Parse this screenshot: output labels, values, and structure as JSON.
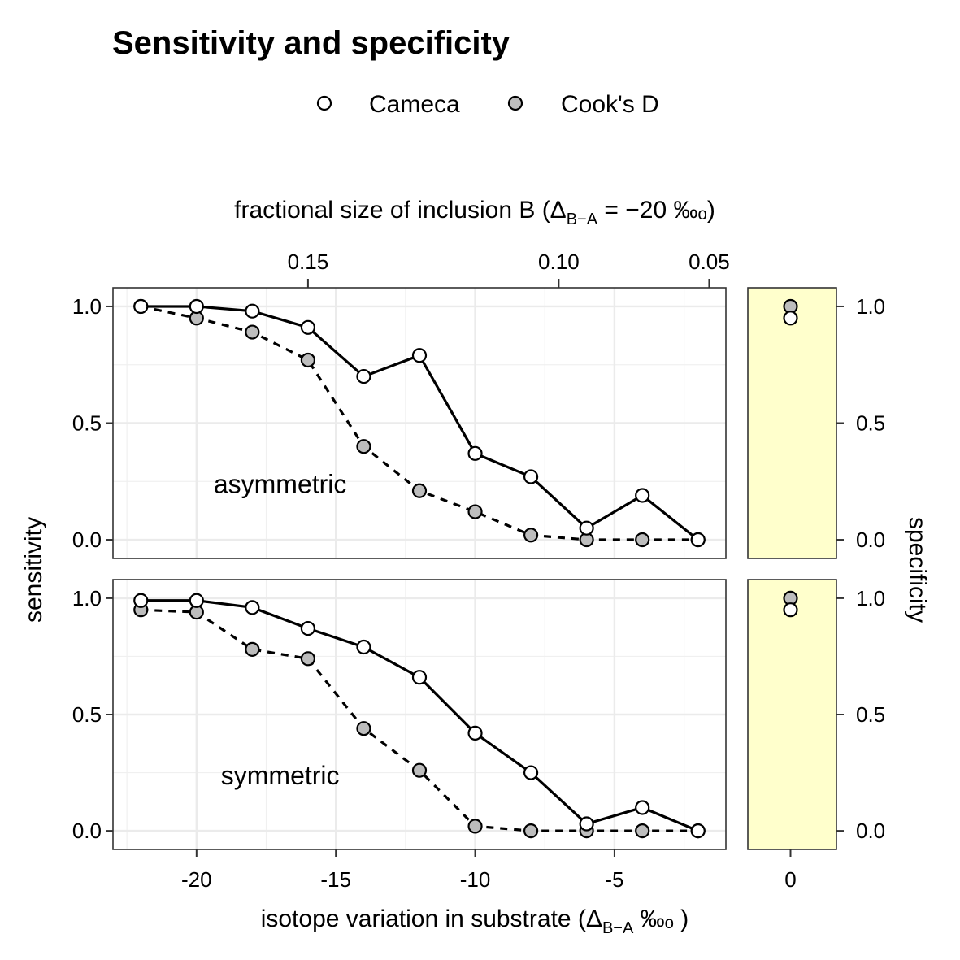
{
  "chart_data": {
    "type": "scatter",
    "title": "Sensitivity and specificity",
    "legend": {
      "placement": "top",
      "entries": [
        {
          "name": "Cameca",
          "fill": "#ffffff"
        },
        {
          "name": "Cook's D",
          "fill": "#bdbdbd"
        }
      ]
    },
    "x_label": {
      "pre": "isotope variation in substrate (Δ",
      "sub": "B−A",
      "post": " ‰ₒ )"
    },
    "x_top_label": {
      "pre": "fractional size of inclusion B (Δ",
      "sub": "B−A",
      "post": " = −20 ‰ₒ)"
    },
    "y_label": "sensitivity",
    "y_right_label": "specificity",
    "x_ticks": [
      -20,
      -15,
      -10,
      -5
    ],
    "x_tick_labels": [
      "-20",
      "-15",
      "-10",
      "-5"
    ],
    "xlim": [
      -23,
      -1
    ],
    "x_top_ticks": [
      {
        "x": -16,
        "label": "0.15"
      },
      {
        "x": -7,
        "label": "0.10"
      },
      {
        "x": -1.6,
        "label": "0.05"
      }
    ],
    "y_ticks": [
      0,
      0.5,
      1
    ],
    "y_tick_labels": [
      "0.0",
      "0.5",
      "1.0"
    ],
    "ylim": [
      -0.08,
      1.08
    ],
    "grid": true,
    "side_x_tick": "0",
    "side_background": "#ffffcc",
    "x": [
      -22,
      -20,
      -18,
      -16,
      -14,
      -12,
      -10,
      -8,
      -6,
      -4,
      -2
    ],
    "panels": [
      {
        "label": "asymmetric",
        "series": [
          {
            "name": "Cameca",
            "line": "solid",
            "fill": "#ffffff",
            "values": [
              1.0,
              1.0,
              0.98,
              0.91,
              0.7,
              0.79,
              0.37,
              0.27,
              0.05,
              0.19,
              0.0
            ]
          },
          {
            "name": "Cook's D",
            "line": "dashed",
            "fill": "#bdbdbd",
            "values": [
              1.0,
              0.95,
              0.89,
              0.77,
              0.4,
              0.21,
              0.12,
              0.02,
              0.0,
              0.0,
              0.0
            ]
          }
        ],
        "specificity": [
          {
            "name": "Cameca",
            "fill": "#ffffff",
            "value": 0.95
          },
          {
            "name": "Cook's D",
            "fill": "#bdbdbd",
            "value": 1.0
          }
        ]
      },
      {
        "label": "symmetric",
        "series": [
          {
            "name": "Cameca",
            "line": "solid",
            "fill": "#ffffff",
            "values": [
              0.99,
              0.99,
              0.96,
              0.87,
              0.79,
              0.66,
              0.42,
              0.25,
              0.03,
              0.1,
              0.0
            ]
          },
          {
            "name": "Cook's D",
            "line": "dashed",
            "fill": "#bdbdbd",
            "values": [
              0.95,
              0.94,
              0.78,
              0.74,
              0.44,
              0.26,
              0.02,
              0.0,
              0.0,
              0.0,
              0.0
            ]
          }
        ],
        "specificity": [
          {
            "name": "Cameca",
            "fill": "#ffffff",
            "value": 0.95
          },
          {
            "name": "Cook's D",
            "fill": "#bdbdbd",
            "value": 1.0
          }
        ]
      }
    ]
  }
}
